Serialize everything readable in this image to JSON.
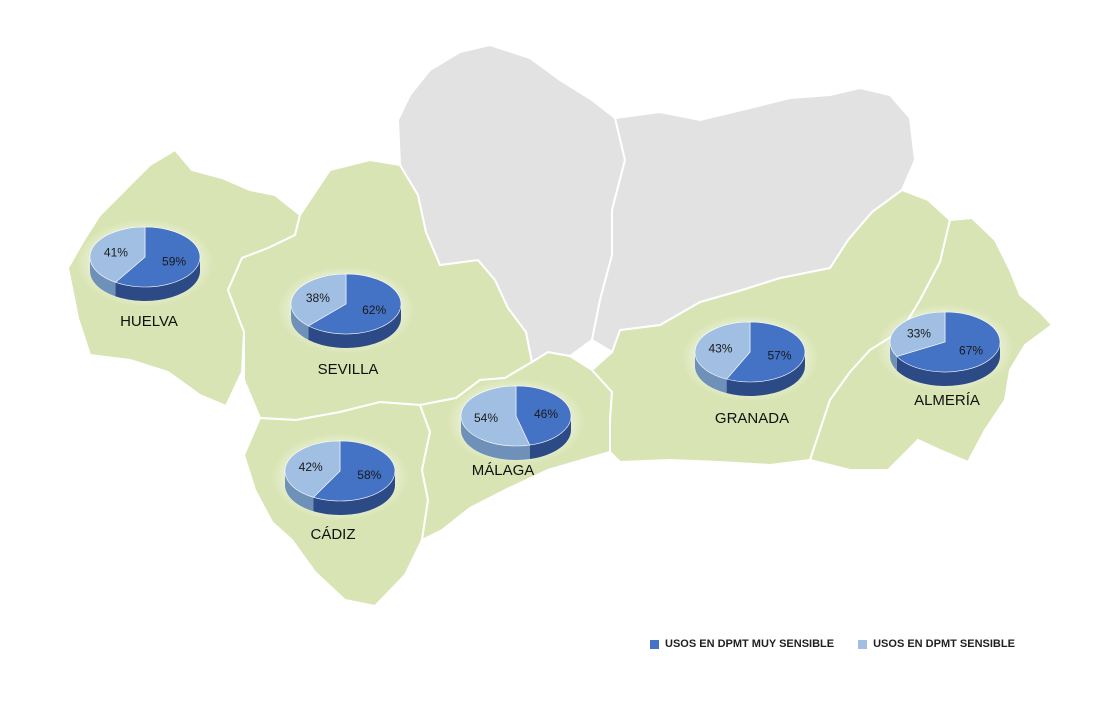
{
  "colors": {
    "coastal_province_fill": "#d8e4b3",
    "inland_province_fill": "#e2e2e2",
    "muy_sensible": "#4472c4",
    "muy_sensible_side": "#2c4a86",
    "sensible": "#a0bfe2",
    "sensible_side": "#6f90b8",
    "province_label": "#111111"
  },
  "legend": {
    "muy_sensible": "USOS EN DPMT MUY SENSIBLE",
    "sensible": "USOS EN DPMT SENSIBLE"
  },
  "chart_data": {
    "type": "pie",
    "series_names": [
      "USOS EN DPMT MUY SENSIBLE",
      "USOS EN DPMT SENSIBLE"
    ],
    "provinces": [
      {
        "name": "HUELVA",
        "muy_sensible": 59,
        "sensible": 41
      },
      {
        "name": "SEVILLA",
        "muy_sensible": 62,
        "sensible": 38
      },
      {
        "name": "CÁDIZ",
        "muy_sensible": 58,
        "sensible": 42
      },
      {
        "name": "MÁLAGA",
        "muy_sensible": 46,
        "sensible": 54
      },
      {
        "name": "GRANADA",
        "muy_sensible": 57,
        "sensible": 43
      },
      {
        "name": "ALMERÍA",
        "muy_sensible": 67,
        "sensible": 33
      }
    ]
  }
}
